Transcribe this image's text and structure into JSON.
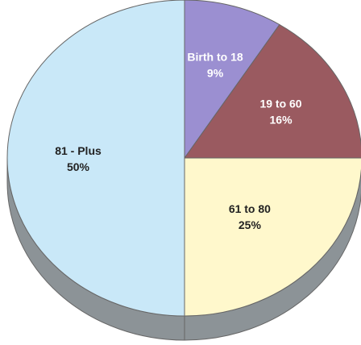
{
  "chart_data": {
    "type": "pie",
    "style": "3d",
    "slices": [
      {
        "label": "Birth to 18",
        "percent_label": "9%",
        "value": 9,
        "color": "#9b8fd1",
        "label_color": "#ffffff"
      },
      {
        "label": "19 to 60",
        "percent_label": "16%",
        "value": 16,
        "color": "#9a5a60",
        "label_color": "#ffffff"
      },
      {
        "label": "61 to 80",
        "percent_label": "25%",
        "value": 25,
        "color": "#fff8cc",
        "label_color": "#222222"
      },
      {
        "label": "81 - Plus",
        "percent_label": "50%",
        "value": 50,
        "color": "#c9e8f8",
        "label_color": "#222222"
      }
    ],
    "side_color": "#8c9397",
    "outline_color": "#666666"
  }
}
